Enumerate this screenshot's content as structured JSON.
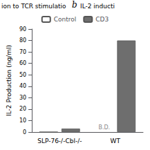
{
  "chart_data": {
    "type": "bar",
    "title": "IL-2 inducti",
    "annotations": [
      "ion to TCR stimulatio",
      "b",
      "B.D."
    ],
    "ylabel": "IL-2 Production (ng/ml)",
    "categories": [
      "SLP-76-/-Cbl-/-",
      "WT"
    ],
    "series": [
      {
        "name": "Control",
        "color": "white",
        "values": [
          0,
          null
        ]
      },
      {
        "name": "CD3",
        "color": "#6e6e6e",
        "values": [
          3,
          80
        ]
      }
    ],
    "ylim": [
      0,
      90
    ],
    "yticks": [
      0,
      10,
      20,
      30,
      40,
      50,
      60,
      70,
      80,
      90
    ],
    "grid": false,
    "legend": "top"
  }
}
